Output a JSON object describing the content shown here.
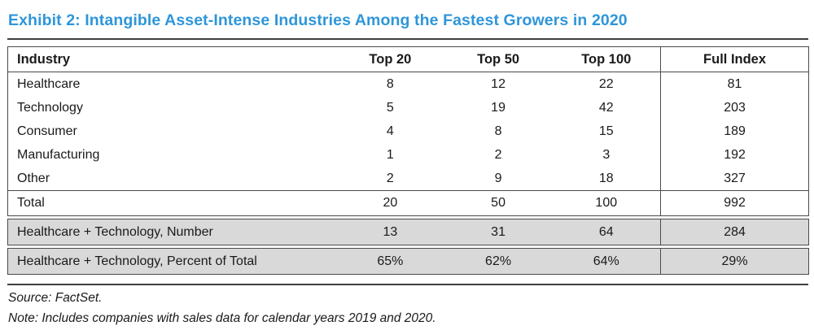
{
  "title": "Exhibit 2: Intangible Asset-Intense Industries Among the Fastest Growers in 2020",
  "colors": {
    "title_blue": "#2E96D9",
    "row_shade_gray": "#D9D9D9",
    "table_border": "#4A4A4A",
    "rule_dark": "#3F3F3F"
  },
  "table": {
    "columns": [
      "Industry",
      "Top 20",
      "Top 50",
      "Top 100",
      "Full Index"
    ],
    "rows": [
      {
        "label": "Healthcare",
        "values": [
          "8",
          "12",
          "22",
          "81"
        ],
        "style": "normal"
      },
      {
        "label": "Technology",
        "values": [
          "5",
          "19",
          "42",
          "203"
        ],
        "style": "normal"
      },
      {
        "label": "Consumer",
        "values": [
          "4",
          "8",
          "15",
          "189"
        ],
        "style": "normal"
      },
      {
        "label": "Manufacturing",
        "values": [
          "1",
          "2",
          "3",
          "192"
        ],
        "style": "normal"
      },
      {
        "label": "Other",
        "values": [
          "2",
          "9",
          "18",
          "327"
        ],
        "style": "normal"
      },
      {
        "label": "Total",
        "values": [
          "20",
          "50",
          "100",
          "992"
        ],
        "style": "total"
      },
      {
        "label": "Healthcare + Technology, Number",
        "values": [
          "13",
          "31",
          "64",
          "284"
        ],
        "style": "shaded"
      },
      {
        "label": "Healthcare + Technology, Percent of Total",
        "values": [
          "65%",
          "62%",
          "64%",
          "29%"
        ],
        "style": "shaded"
      }
    ]
  },
  "footer": {
    "source": "Source: FactSet.",
    "note": "Note: Includes companies with sales data for calendar years 2019 and 2020."
  }
}
